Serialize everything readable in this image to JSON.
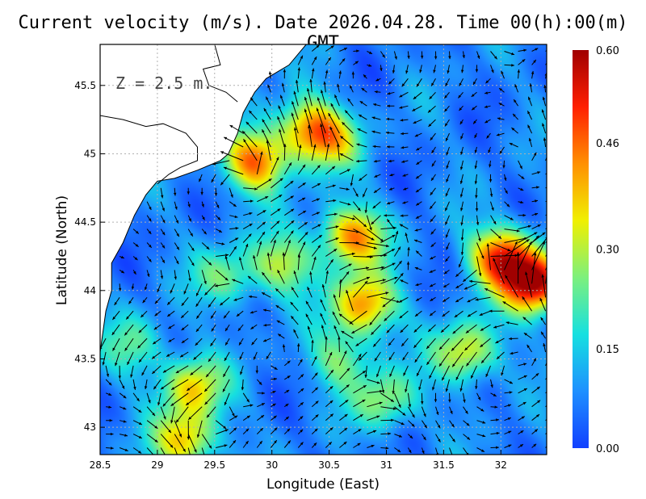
{
  "title": "Current velocity (m/s). Date 2026.04.28. Time 00(h):00(m) GMT",
  "depth_label": "Z = 2.5 m.",
  "x_axis": {
    "label": "Longitude (East)",
    "range": [
      28.5,
      32.4
    ],
    "ticks": [
      "28.5",
      "29",
      "29.5",
      "30",
      "30.5",
      "31",
      "31.5",
      "32"
    ]
  },
  "y_axis": {
    "label": "Latitude (North)",
    "range": [
      42.8,
      45.8
    ],
    "ticks": [
      "43",
      "43.5",
      "44",
      "44.5",
      "45",
      "45.5"
    ]
  },
  "colorbar": {
    "min": 0.0,
    "max": 0.6,
    "unit": "m/s",
    "tick_labels": [
      "0.00",
      "0.15",
      "0.30",
      "0.46",
      "0.60"
    ],
    "colors": [
      "#1240ff",
      "#1e90ff",
      "#16e0e0",
      "#7df07d",
      "#f0f000",
      "#ff9000",
      "#ff2000",
      "#a00000"
    ]
  },
  "colors": {
    "land": "#ffffff",
    "coastline": "#000000",
    "arrows": "#000000",
    "grid": "#b0b0b0"
  },
  "grid": "dotted",
  "chart_data": {
    "type": "heatmap",
    "variable": "current velocity magnitude (m/s) with direction vectors",
    "xlim": [
      28.5,
      32.4
    ],
    "ylim": [
      42.8,
      45.8
    ],
    "hotspots": [
      {
        "lon": 32.3,
        "lat": 44.05,
        "speed": 0.58
      },
      {
        "lon": 32.0,
        "lat": 44.25,
        "speed": 0.5
      },
      {
        "lon": 30.8,
        "lat": 43.9,
        "speed": 0.44
      },
      {
        "lon": 30.7,
        "lat": 44.4,
        "speed": 0.44
      },
      {
        "lon": 29.85,
        "lat": 44.95,
        "speed": 0.46
      },
      {
        "lon": 30.3,
        "lat": 45.2,
        "speed": 0.35
      },
      {
        "lon": 30.5,
        "lat": 45.1,
        "speed": 0.3
      },
      {
        "lon": 29.3,
        "lat": 43.3,
        "speed": 0.36
      },
      {
        "lon": 29.25,
        "lat": 42.9,
        "speed": 0.38
      },
      {
        "lon": 31.7,
        "lat": 43.55,
        "speed": 0.35
      },
      {
        "lon": 30.1,
        "lat": 44.2,
        "speed": 0.3
      },
      {
        "lon": 29.6,
        "lat": 44.1,
        "speed": 0.25
      },
      {
        "lon": 31.0,
        "lat": 43.2,
        "speed": 0.28
      },
      {
        "lon": 28.8,
        "lat": 43.6,
        "speed": 0.22
      },
      {
        "lon": 30.6,
        "lat": 43.5,
        "speed": 0.25
      }
    ],
    "vortices": [
      {
        "lon": 30.9,
        "lat": 44.3,
        "direction": "counterclockwise"
      },
      {
        "lon": 29.4,
        "lat": 43.6,
        "direction": "clockwise"
      },
      {
        "lon": 30.1,
        "lat": 43.6,
        "direction": "counterclockwise"
      },
      {
        "lon": 31.5,
        "lat": 44.9,
        "direction": "clockwise"
      }
    ]
  }
}
